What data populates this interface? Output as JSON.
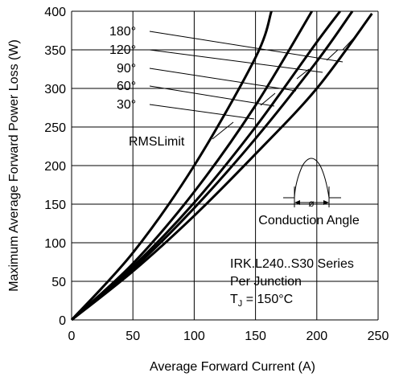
{
  "chart_data": {
    "type": "line",
    "xlabel": "Average Forward Current (A)",
    "ylabel": "Maximum Average Forward Power Loss (W)",
    "xlim": [
      0,
      250
    ],
    "ylim": [
      0,
      400
    ],
    "xticks": [
      0,
      50,
      100,
      150,
      200,
      250
    ],
    "yticks": [
      0,
      50,
      100,
      150,
      200,
      250,
      300,
      350,
      400
    ],
    "grid": true,
    "series": [
      {
        "name": "180°",
        "x": [
          0,
          50,
          100,
          150,
          200,
          245
        ],
        "y": [
          0,
          63,
          135,
          215,
          300,
          397
        ]
      },
      {
        "name": "120°",
        "x": [
          0,
          50,
          100,
          150,
          200,
          229
        ],
        "y": [
          0,
          66,
          145,
          235,
          335,
          400
        ]
      },
      {
        "name": "90°",
        "x": [
          0,
          50,
          100,
          150,
          200,
          219
        ],
        "y": [
          0,
          69,
          152,
          250,
          360,
          400
        ]
      },
      {
        "name": "60°",
        "x": [
          0,
          50,
          100,
          150,
          196
        ],
        "y": [
          0,
          73,
          166,
          278,
          400
        ]
      },
      {
        "name": "30°",
        "x": [
          0,
          50,
          100,
          150,
          163
        ],
        "y": [
          0,
          87,
          200,
          340,
          400
        ]
      }
    ],
    "labels": [
      "180°",
      "120°",
      "90°",
      "60°",
      "30°",
      "RMSLimit"
    ],
    "annotations": {
      "conduction": "Conduction Angle",
      "phi": "ø",
      "series_line1": "IRK.L240..S30 Series",
      "series_line2": "Per Junction",
      "tj_prefix": "T",
      "tj_sub": "J",
      "tj_suffix": " = 150°C"
    }
  }
}
